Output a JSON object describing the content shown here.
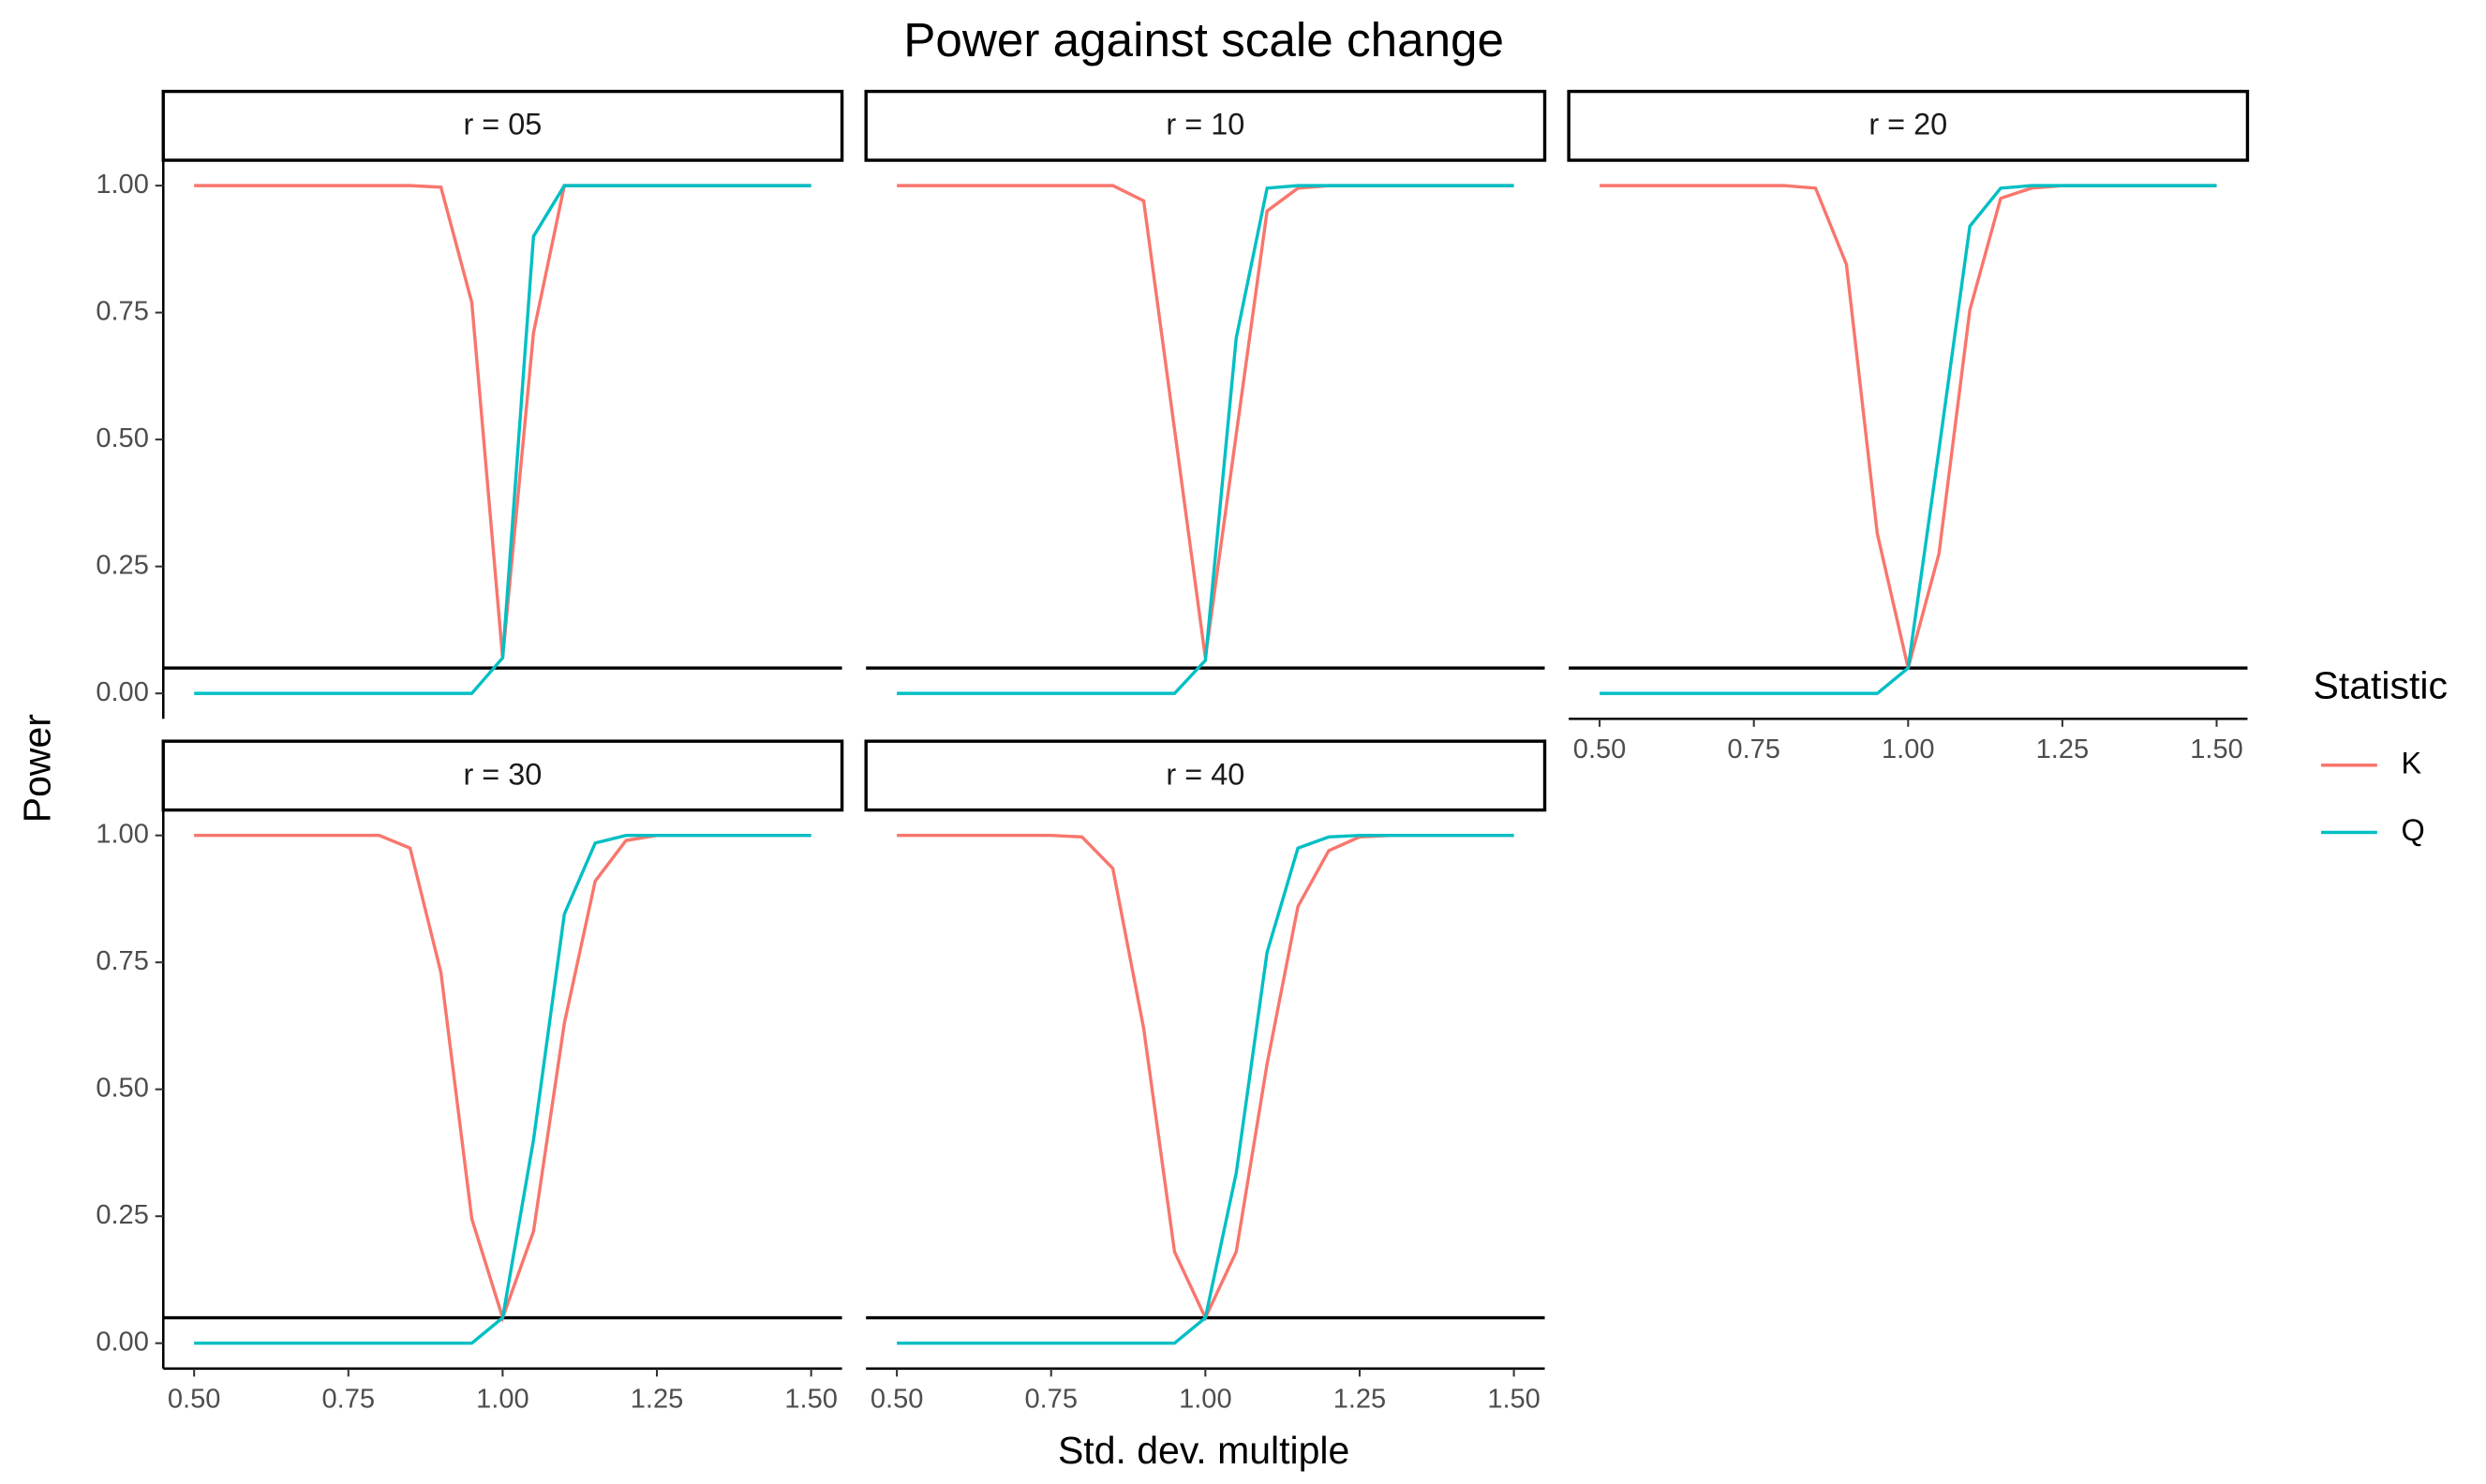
{
  "chart_data": {
    "type": "line",
    "title": "Power against scale change",
    "xlabel": "Std. dev. multiple",
    "ylabel": "Power",
    "legend_title": "Statistic",
    "x": [
      0.5,
      0.55,
      0.6,
      0.65,
      0.7,
      0.75,
      0.8,
      0.85,
      0.9,
      0.95,
      1.0,
      1.05,
      1.1,
      1.15,
      1.2,
      1.25,
      1.3,
      1.35,
      1.4,
      1.45,
      1.5
    ],
    "xlim": [
      0.45,
      1.55
    ],
    "ylim": [
      -0.05,
      1.05
    ],
    "hline": 0.05,
    "xticks": [
      {
        "value": 0.5,
        "label": "0.50"
      },
      {
        "value": 0.75,
        "label": "0.75"
      },
      {
        "value": 1.0,
        "label": "1.00"
      },
      {
        "value": 1.25,
        "label": "1.25"
      },
      {
        "value": 1.5,
        "label": "1.50"
      }
    ],
    "yticks": [
      {
        "value": 0,
        "label": "0.00"
      },
      {
        "value": 0.25,
        "label": "0.25"
      },
      {
        "value": 0.5,
        "label": "0.50"
      },
      {
        "value": 0.75,
        "label": "0.75"
      },
      {
        "value": 1.0,
        "label": "1.00"
      }
    ],
    "panels": [
      {
        "title": "r = 05",
        "series": [
          {
            "name": "K",
            "color": "#F8766D",
            "values": [
              1,
              1,
              1,
              1,
              1,
              1,
              1,
              1,
              0.997,
              0.77,
              0.07,
              0.71,
              1,
              1,
              1,
              1,
              1,
              1,
              1,
              1,
              1
            ]
          },
          {
            "name": "Q",
            "color": "#00BFC4",
            "values": [
              0,
              0,
              0,
              0,
              0,
              0,
              0,
              0,
              0,
              0,
              0.07,
              0.9,
              1,
              1,
              1,
              1,
              1,
              1,
              1,
              1,
              1
            ]
          }
        ]
      },
      {
        "title": "r = 10",
        "series": [
          {
            "name": "K",
            "color": "#F8766D",
            "values": [
              1,
              1,
              1,
              1,
              1,
              1,
              1,
              1,
              0.97,
              0.52,
              0.07,
              0.51,
              0.95,
              0.995,
              1,
              1,
              1,
              1,
              1,
              1,
              1
            ]
          },
          {
            "name": "Q",
            "color": "#00BFC4",
            "values": [
              0,
              0,
              0,
              0,
              0,
              0,
              0,
              0,
              0,
              0,
              0.065,
              0.7,
              0.995,
              1,
              1,
              1,
              1,
              1,
              1,
              1,
              1
            ]
          }
        ]
      },
      {
        "title": "r = 20",
        "series": [
          {
            "name": "K",
            "color": "#F8766D",
            "values": [
              1,
              1,
              1,
              1,
              1,
              1,
              1,
              0.995,
              0.845,
              0.315,
              0.05,
              0.275,
              0.755,
              0.975,
              0.995,
              1,
              1,
              1,
              1,
              1,
              1
            ]
          },
          {
            "name": "Q",
            "color": "#00BFC4",
            "values": [
              0,
              0,
              0,
              0,
              0,
              0,
              0,
              0,
              0,
              0,
              0.05,
              0.48,
              0.92,
              0.995,
              1,
              1,
              1,
              1,
              1,
              1,
              1
            ]
          }
        ]
      },
      {
        "title": "r = 30",
        "series": [
          {
            "name": "K",
            "color": "#F8766D",
            "values": [
              1,
              1,
              1,
              1,
              1,
              1,
              1,
              0.975,
              0.73,
              0.245,
              0.05,
              0.22,
              0.63,
              0.91,
              0.99,
              1,
              1,
              1,
              1,
              1,
              1
            ]
          },
          {
            "name": "Q",
            "color": "#00BFC4",
            "values": [
              0,
              0,
              0,
              0,
              0,
              0,
              0,
              0,
              0,
              0,
              0.05,
              0.4,
              0.845,
              0.985,
              1,
              1,
              1,
              1,
              1,
              1,
              1
            ]
          }
        ]
      },
      {
        "title": "r = 40",
        "series": [
          {
            "name": "K",
            "color": "#F8766D",
            "values": [
              1,
              1,
              1,
              1,
              1,
              1,
              0.997,
              0.935,
              0.62,
              0.18,
              0.05,
              0.18,
              0.55,
              0.86,
              0.97,
              0.997,
              1,
              1,
              1,
              1,
              1
            ]
          },
          {
            "name": "Q",
            "color": "#00BFC4",
            "values": [
              0,
              0,
              0,
              0,
              0,
              0,
              0,
              0,
              0,
              0,
              0.05,
              0.335,
              0.77,
              0.975,
              0.997,
              1,
              1,
              1,
              1,
              1,
              1
            ]
          }
        ]
      }
    ]
  }
}
